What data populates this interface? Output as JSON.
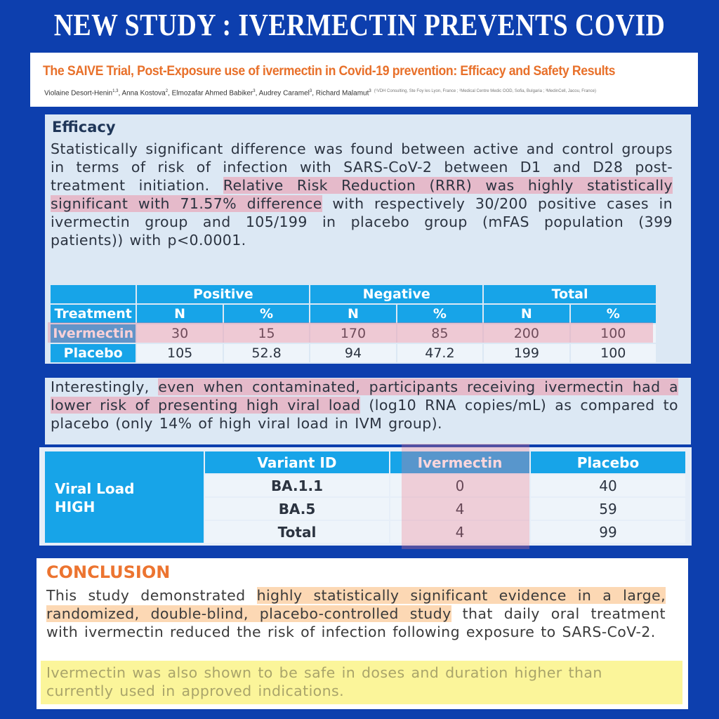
{
  "header": {
    "title": "NEW STUDY : IVERMECTIN PREVENTS COVID"
  },
  "paper": {
    "title": "The SAIVE Trial, Post-Exposure use of ivermectin in Covid-19 prevention: Efficacy and Safety Results",
    "authors": [
      {
        "name": "Violaine Desort-Henin",
        "sup": "1,3"
      },
      {
        "name": "Anna Kostova",
        "sup": "2"
      },
      {
        "name": "Elmozafar Ahmed Babiker",
        "sup": "3"
      },
      {
        "name": "Audrey Caramel",
        "sup": "3"
      },
      {
        "name": "Richard Malamut",
        "sup": "3"
      }
    ],
    "separator": ", ",
    "affiliations": "(¹VDH Consulting, Ste Foy les Lyon, France ; ²Medical Centre Medic OOD, Sofia, Bulgaria ; ³MedinCell, Jacou, France)"
  },
  "efficacy": {
    "heading": "Efficacy",
    "highlight_color": "rgba(238,140,160,0.5)",
    "paragraph": [
      {
        "text": "Statistically significant difference was found between active and control groups in terms of risk of infection with SARS-CoV-2 between D1 and D28 post-treatment initiation.",
        "highlight": false
      },
      {
        "text": "Relative Risk Reduction (RRR) was highly statistically significant with 71.57% difference",
        "highlight": true
      },
      {
        "text": "with respectively 30/200 positive cases in ivermectin group and 105/199 in placebo group (mFAS population (399 patients)) with p<0.0001.",
        "highlight": false
      }
    ],
    "table": {
      "groups": [
        "Positive",
        "Negative",
        "Total"
      ],
      "columns": [
        "Treatment",
        "N",
        "%",
        "N",
        "%",
        "N",
        "%"
      ],
      "rows": [
        [
          "Ivermectin",
          30,
          15,
          170,
          85,
          200,
          100
        ],
        [
          "Placebo",
          105,
          52.8,
          94,
          47.2,
          199,
          100
        ]
      ]
    }
  },
  "viral_load": {
    "highlight_color": "rgba(238,140,160,0.5)",
    "paragraph": [
      {
        "text": "Interestingly,",
        "highlight": false
      },
      {
        "text": "even when contaminated, participants receiving ivermectin had a lower risk of presenting high viral load",
        "highlight": true
      },
      {
        "text": "(log10 RNA copies/mL) as compared to placebo (only 14% of high viral load in IVM group).",
        "highlight": false
      }
    ],
    "table": {
      "row_label": [
        "Viral Load",
        "HIGH"
      ],
      "columns": [
        "Variant ID",
        "Ivermectin",
        "Placebo"
      ],
      "rows": [
        [
          "BA.1.1",
          0,
          40
        ],
        [
          "BA.5",
          4,
          59
        ],
        [
          "Total",
          4,
          99
        ]
      ]
    }
  },
  "conclusion": {
    "heading": "CONCLUSION",
    "highlight_color": "rgba(250,190,130,0.6)",
    "paragraph": [
      {
        "text": "This study demonstrated",
        "highlight": false
      },
      {
        "text": "highly statistically significant evidence in a large, randomized, double-blind, placebo-controlled study",
        "highlight": true
      },
      {
        "text": "that daily oral treatment with ivermectin reduced the risk of infection following exposure to SARS-CoV-2.",
        "highlight": false
      }
    ],
    "safety": "Ivermectin was also shown to be safe in doses and duration higher than currently used in approved indications."
  }
}
